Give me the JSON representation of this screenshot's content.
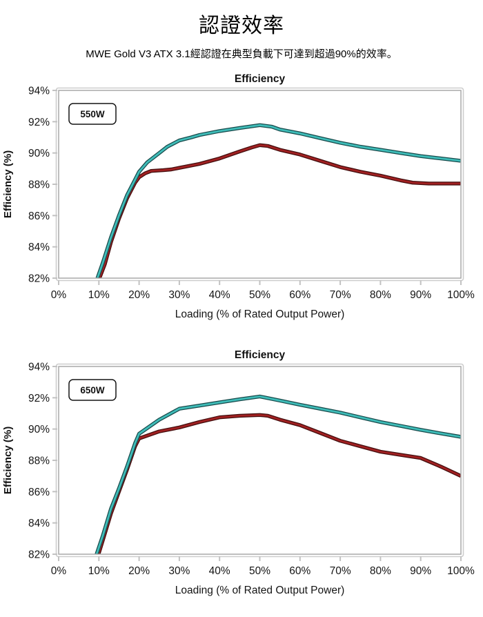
{
  "page": {
    "title": "認證效率",
    "subtitle": "MWE Gold V3 ATX 3.1經認證在典型負載下可達到超過90%的效率。"
  },
  "colors": {
    "teal_line": "#3fbcb8",
    "teal_outline": "#17494a",
    "red_line": "#a12122",
    "red_outline": "#420d0d",
    "axis_border_inner": "#a8a8a8",
    "axis_border_outer": "#cdcdcd",
    "tick_mark": "#c2c2c2",
    "text": "#141414"
  },
  "chart_data": [
    {
      "type": "line",
      "title": "Efficiency",
      "legend_label": "550W",
      "legend_position": "top-left",
      "xlabel": "Loading (% of Rated Output Power)",
      "ylabel": "Efficiency (%)",
      "xlim": [
        0,
        100
      ],
      "ylim": [
        82,
        94
      ],
      "grid": false,
      "x_ticks": [
        {
          "v": 0,
          "label": "0%"
        },
        {
          "v": 10,
          "label": "10%"
        },
        {
          "v": 20,
          "label": "20%"
        },
        {
          "v": 30,
          "label": "30%"
        },
        {
          "v": 40,
          "label": "40%"
        },
        {
          "v": 50,
          "label": "50%"
        },
        {
          "v": 60,
          "label": "60%"
        },
        {
          "v": 70,
          "label": "70%"
        },
        {
          "v": 80,
          "label": "80%"
        },
        {
          "v": 90,
          "label": "90%"
        },
        {
          "v": 100,
          "label": "100%"
        }
      ],
      "y_ticks": [
        {
          "v": 82,
          "label": "82%"
        },
        {
          "v": 84,
          "label": "84%"
        },
        {
          "v": 86,
          "label": "86%"
        },
        {
          "v": 88,
          "label": "88%"
        },
        {
          "v": 90,
          "label": "90%"
        },
        {
          "v": 92,
          "label": "92%"
        },
        {
          "v": 94,
          "label": "94%"
        }
      ],
      "series": [
        {
          "id": "teal-line",
          "color": "#3fbcb8",
          "outline": "#17494a",
          "points": [
            [
              9.5,
              81.9
            ],
            [
              11,
              83.0
            ],
            [
              13,
              84.6
            ],
            [
              15,
              86.0
            ],
            [
              17,
              87.3
            ],
            [
              19,
              88.3
            ],
            [
              20,
              88.8
            ],
            [
              22,
              89.4
            ],
            [
              25,
              90.0
            ],
            [
              27,
              90.4
            ],
            [
              30,
              90.8
            ],
            [
              33,
              91.0
            ],
            [
              35,
              91.15
            ],
            [
              40,
              91.4
            ],
            [
              45,
              91.6
            ],
            [
              50,
              91.78
            ],
            [
              53,
              91.68
            ],
            [
              55,
              91.5
            ],
            [
              60,
              91.25
            ],
            [
              65,
              90.95
            ],
            [
              70,
              90.65
            ],
            [
              75,
              90.4
            ],
            [
              80,
              90.2
            ],
            [
              85,
              90.0
            ],
            [
              90,
              89.8
            ],
            [
              95,
              89.65
            ],
            [
              100,
              89.5
            ]
          ]
        },
        {
          "id": "red-line",
          "color": "#a12122",
          "outline": "#420d0d",
          "points": [
            [
              10,
              81.9
            ],
            [
              11.5,
              82.9
            ],
            [
              13,
              84.3
            ],
            [
              15,
              85.8
            ],
            [
              17,
              87.1
            ],
            [
              19,
              88.1
            ],
            [
              20,
              88.45
            ],
            [
              21.5,
              88.7
            ],
            [
              23,
              88.85
            ],
            [
              26,
              88.9
            ],
            [
              28,
              88.95
            ],
            [
              30,
              89.05
            ],
            [
              35,
              89.3
            ],
            [
              40,
              89.65
            ],
            [
              45,
              90.1
            ],
            [
              48,
              90.35
            ],
            [
              50,
              90.5
            ],
            [
              52,
              90.45
            ],
            [
              55,
              90.2
            ],
            [
              60,
              89.9
            ],
            [
              65,
              89.5
            ],
            [
              70,
              89.1
            ],
            [
              75,
              88.8
            ],
            [
              80,
              88.55
            ],
            [
              85,
              88.25
            ],
            [
              88,
              88.1
            ],
            [
              92,
              88.05
            ],
            [
              100,
              88.05
            ]
          ]
        }
      ]
    },
    {
      "type": "line",
      "title": "Efficiency",
      "legend_label": "650W",
      "legend_position": "top-left",
      "xlabel": "Loading (% of Rated Output Power)",
      "ylabel": "Efficiency (%)",
      "xlim": [
        0,
        100
      ],
      "ylim": [
        82,
        94
      ],
      "grid": false,
      "x_ticks": [
        {
          "v": 0,
          "label": "0%"
        },
        {
          "v": 10,
          "label": "10%"
        },
        {
          "v": 20,
          "label": "20%"
        },
        {
          "v": 30,
          "label": "30%"
        },
        {
          "v": 40,
          "label": "40%"
        },
        {
          "v": 50,
          "label": "50%"
        },
        {
          "v": 60,
          "label": "60%"
        },
        {
          "v": 70,
          "label": "70%"
        },
        {
          "v": 80,
          "label": "80%"
        },
        {
          "v": 90,
          "label": "90%"
        },
        {
          "v": 100,
          "label": "100%"
        }
      ],
      "y_ticks": [
        {
          "v": 82,
          "label": "82%"
        },
        {
          "v": 84,
          "label": "84%"
        },
        {
          "v": 86,
          "label": "86%"
        },
        {
          "v": 88,
          "label": "88%"
        },
        {
          "v": 90,
          "label": "90%"
        },
        {
          "v": 92,
          "label": "92%"
        },
        {
          "v": 94,
          "label": "94%"
        }
      ],
      "series": [
        {
          "id": "teal-line",
          "color": "#3fbcb8",
          "outline": "#17494a",
          "points": [
            [
              9.3,
              81.9
            ],
            [
              11,
              83.2
            ],
            [
              13,
              84.9
            ],
            [
              15,
              86.2
            ],
            [
              17,
              87.6
            ],
            [
              19,
              89.1
            ],
            [
              20,
              89.7
            ],
            [
              25,
              90.6
            ],
            [
              30,
              91.3
            ],
            [
              35,
              91.5
            ],
            [
              40,
              91.7
            ],
            [
              45,
              91.9
            ],
            [
              50,
              92.08
            ],
            [
              55,
              91.82
            ],
            [
              60,
              91.55
            ],
            [
              65,
              91.3
            ],
            [
              70,
              91.05
            ],
            [
              75,
              90.75
            ],
            [
              80,
              90.45
            ],
            [
              85,
              90.2
            ],
            [
              90,
              89.95
            ],
            [
              95,
              89.72
            ],
            [
              100,
              89.5
            ]
          ]
        },
        {
          "id": "red-line",
          "color": "#a12122",
          "outline": "#420d0d",
          "points": [
            [
              9.8,
              81.9
            ],
            [
              11,
              82.9
            ],
            [
              13,
              84.6
            ],
            [
              15,
              86.0
            ],
            [
              17,
              87.4
            ],
            [
              19,
              88.9
            ],
            [
              20,
              89.4
            ],
            [
              25,
              89.85
            ],
            [
              30,
              90.1
            ],
            [
              35,
              90.45
            ],
            [
              40,
              90.75
            ],
            [
              45,
              90.85
            ],
            [
              50,
              90.9
            ],
            [
              52,
              90.85
            ],
            [
              55,
              90.6
            ],
            [
              60,
              90.25
            ],
            [
              65,
              89.75
            ],
            [
              70,
              89.25
            ],
            [
              75,
              88.9
            ],
            [
              80,
              88.55
            ],
            [
              85,
              88.35
            ],
            [
              90,
              88.15
            ],
            [
              95,
              87.6
            ],
            [
              100,
              87.0
            ]
          ]
        }
      ]
    }
  ]
}
